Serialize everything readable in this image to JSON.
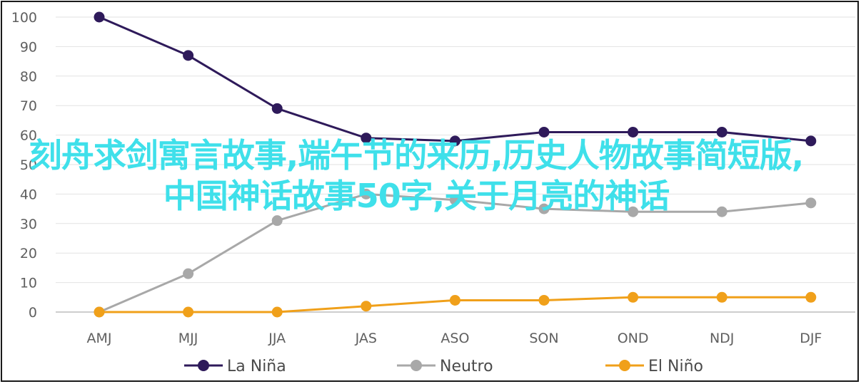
{
  "chart_data": {
    "type": "line",
    "categories": [
      "AMJ",
      "MJJ",
      "JJA",
      "JAS",
      "ASO",
      "SON",
      "OND",
      "NDJ",
      "DJF"
    ],
    "ylim": [
      0,
      100
    ],
    "yticks": [
      0,
      10,
      20,
      30,
      40,
      50,
      60,
      70,
      80,
      90,
      100
    ],
    "grid": true,
    "legend_position": "bottom",
    "series": [
      {
        "name": "La Niña",
        "color": "#2e1a5a",
        "values": [
          100,
          87,
          69,
          59,
          58,
          61,
          61,
          61,
          58
        ]
      },
      {
        "name": "Neutro",
        "color": "#a8a8a8",
        "values": [
          0,
          13,
          31,
          40,
          38,
          35,
          34,
          34,
          37
        ]
      },
      {
        "name": "El Niño",
        "color": "#f0a01a",
        "values": [
          0,
          0,
          0,
          2,
          4,
          4,
          5,
          5,
          5
        ]
      }
    ]
  },
  "overlay": {
    "text": "刻舟求剑寓言故事,端午节的来历,历史人物故事简短版,中国神话故事50字,关于月亮的神话",
    "color": "#3fe0ea"
  }
}
